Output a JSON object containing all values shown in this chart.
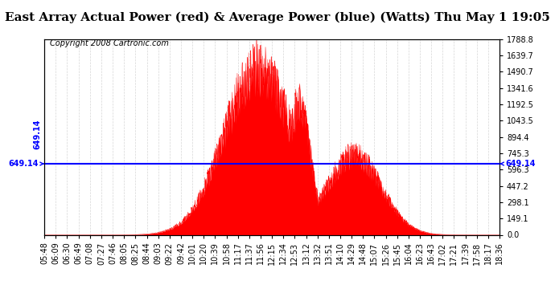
{
  "title": "East Array Actual Power (red) & Average Power (blue) (Watts) Thu May 1 19:05",
  "copyright": "Copyright 2008 Cartronic.com",
  "avg_power": 649.14,
  "ymax": 1788.8,
  "ymin": 0.0,
  "yticks": [
    0.0,
    149.1,
    298.1,
    447.2,
    596.3,
    745.3,
    894.4,
    1043.5,
    1192.5,
    1341.6,
    1490.7,
    1639.7,
    1788.8
  ],
  "xtick_labels": [
    "05:48",
    "06:09",
    "06:30",
    "06:49",
    "07:08",
    "07:27",
    "07:46",
    "08:05",
    "08:25",
    "08:44",
    "09:03",
    "09:22",
    "09:42",
    "10:01",
    "10:20",
    "10:39",
    "10:58",
    "11:17",
    "11:37",
    "11:56",
    "12:15",
    "12:34",
    "12:53",
    "13:12",
    "13:32",
    "13:51",
    "14:10",
    "14:29",
    "14:48",
    "15:07",
    "15:26",
    "15:45",
    "16:04",
    "16:23",
    "16:43",
    "17:02",
    "17:21",
    "17:39",
    "17:58",
    "18:17",
    "18:36"
  ],
  "bg_color": "#ffffff",
  "fill_color": "#ff0000",
  "line_color": "#0000ff",
  "grid_color": "#cccccc",
  "title_fontsize": 11,
  "copyright_fontsize": 7,
  "tick_fontsize": 7
}
